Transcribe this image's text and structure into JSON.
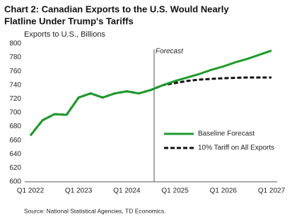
{
  "chart_data": {
    "type": "line",
    "title": [
      "Chart 2: Canadian Exports to the U.S. Would Nearly",
      "Flatline Under Trump's Tariffs"
    ],
    "y_label": "Exports to U.S., Billions",
    "annotation": "Forecast",
    "source": "Source: National Statistical Agencies, TD Economics.",
    "categories": [
      "Q1 2022",
      null,
      null,
      null,
      "Q1 2023",
      null,
      null,
      null,
      "Q1 2024",
      null,
      null,
      null,
      "Q1 2025",
      null,
      null,
      null,
      "Q1 2026",
      null,
      null,
      null,
      "Q1 2027"
    ],
    "series": [
      {
        "name": "Baseline Forecast",
        "color": "#1e9a2c",
        "dash": false,
        "values": [
          667,
          689,
          698,
          697,
          722,
          728,
          722,
          728,
          731,
          728,
          733,
          740,
          746,
          751,
          756,
          762,
          767,
          773,
          778,
          784,
          790
        ]
      },
      {
        "name": "10% Tariff on All Exports",
        "color": "#111111",
        "dash": true,
        "values": [
          667,
          689,
          698,
          697,
          722,
          728,
          722,
          728,
          731,
          728,
          733,
          740,
          743,
          746,
          748,
          749,
          750,
          750.5,
          751,
          751,
          751
        ]
      }
    ],
    "ylim": [
      600,
      800
    ],
    "yticks": [
      600,
      620,
      640,
      660,
      680,
      700,
      720,
      740,
      760,
      780,
      800
    ],
    "grid": false
  }
}
